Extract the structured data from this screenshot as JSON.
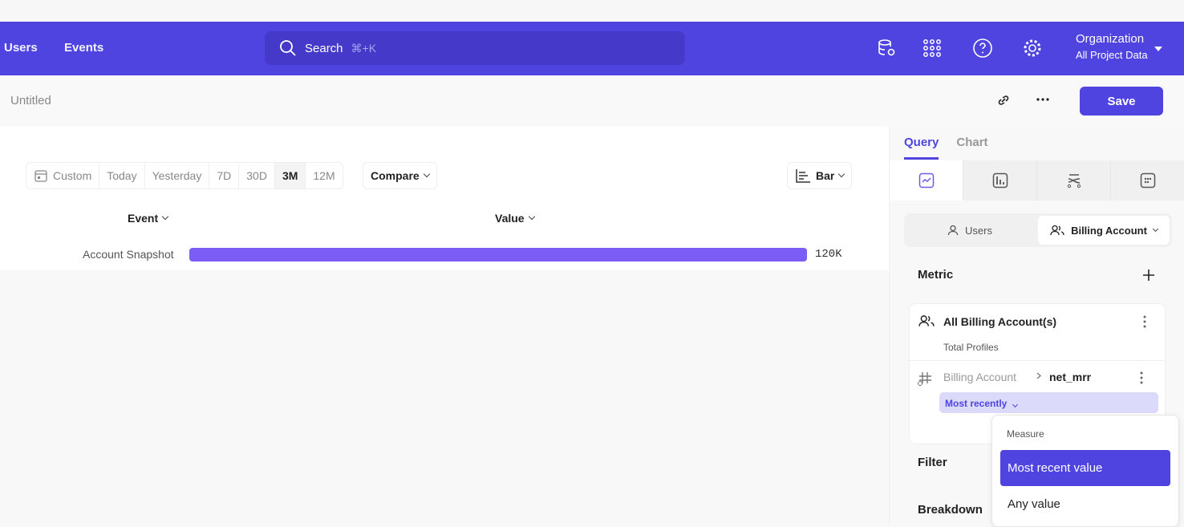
{
  "nav": {
    "links": [
      "Users",
      "Events"
    ],
    "search_placeholder": "Search",
    "search_shortcut": "⌘+K",
    "icons": [
      "database-settings-icon",
      "apps-grid-icon",
      "help-icon",
      "gear-icon"
    ],
    "org_title": "Organization",
    "org_sub": "All Project Data",
    "accent": "#4f44e0"
  },
  "subheader": {
    "title": "Untitled",
    "save_label": "Save"
  },
  "toolbar": {
    "date_ranges": [
      "Custom",
      "Today",
      "Yesterday",
      "7D",
      "30D",
      "3M",
      "12M"
    ],
    "selected_range": "3M",
    "compare_label": "Compare",
    "chart_type_label": "Bar"
  },
  "table": {
    "col_event": "Event",
    "col_value": "Value",
    "rows": [
      {
        "event": "Account Snapshot",
        "value_label": "120K"
      }
    ]
  },
  "chart_data": {
    "type": "bar",
    "categories": [
      "Account Snapshot"
    ],
    "values": [
      120000
    ],
    "bar_color": "#7b5cf5"
  },
  "panel": {
    "tabs": [
      "Query",
      "Chart"
    ],
    "active_tab": "Query",
    "view_icons": [
      "insights-icon",
      "bar-report-icon",
      "flows-icon",
      "retention-icon"
    ],
    "entity_options": [
      "Users",
      "Billing Account"
    ],
    "selected_entity": "Billing Account",
    "metric_label": "Metric",
    "metric_name": "All Billing Account(s)",
    "metric_sub": "Total Profiles",
    "property_parent": "Billing Account",
    "property_name": "net_mrr",
    "aggregation": "Most recently",
    "filter_label": "Filter",
    "breakdown_label": "Breakdown",
    "menu": {
      "header": "Measure",
      "options": [
        "Most recent value",
        "Any value"
      ],
      "selected": "Most recent value"
    }
  }
}
